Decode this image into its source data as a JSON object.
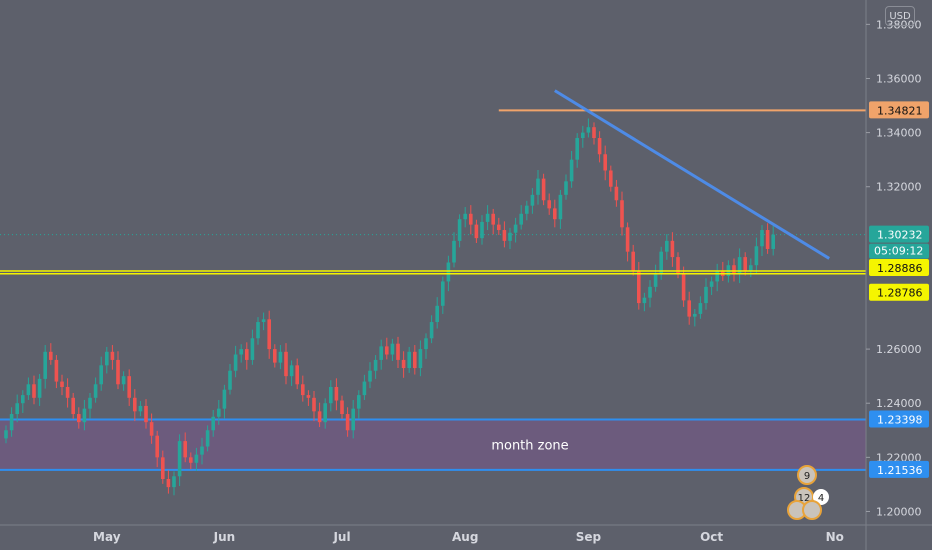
{
  "currency": "USD",
  "annotations": {
    "zone_label": "month zone",
    "event_badges": [
      "9",
      "12",
      "4"
    ]
  },
  "colors": {
    "background": "#5d606b",
    "up_candle": "#26a69a",
    "down_candle": "#ef5350",
    "resistance": "#f0a36a",
    "trendline": "#4e8be6",
    "support_yellow": "#f5f500",
    "zone_line": "#2e8ff0",
    "zone_fill": "#6e5a80",
    "last_price": "#26a69a"
  },
  "chart_data": {
    "type": "candlestick",
    "ylim": [
      1.195,
      1.389
    ],
    "y_ticks": [
      "1.38000",
      "1.36000",
      "1.34000",
      "1.32000",
      "1.26000",
      "1.24000",
      "1.22000",
      "1.20000"
    ],
    "x_ticks": [
      {
        "label": "May",
        "i": 18
      },
      {
        "label": "Jun",
        "i": 39
      },
      {
        "label": "Jul",
        "i": 60
      },
      {
        "label": "Aug",
        "i": 82
      },
      {
        "label": "Sep",
        "i": 104
      },
      {
        "label": "Oct",
        "i": 126
      },
      {
        "label": "No",
        "i": 148
      }
    ],
    "price_labels": [
      {
        "value": 1.34821,
        "text": "1.34821",
        "color": "#f0a36a"
      },
      {
        "value": 1.30232,
        "text": "1.30232",
        "color": "#26a69a"
      },
      {
        "value": 1.28886,
        "text": "1.28886",
        "color": "#f5f500"
      },
      {
        "value": 1.28786,
        "text": "1.28786",
        "color": "#f5f500"
      },
      {
        "value": 1.23398,
        "text": "1.23398",
        "color": "#2e8ff0"
      },
      {
        "value": 1.21536,
        "text": "1.21536",
        "color": "#2e8ff0"
      }
    ],
    "countdown": "05:09:12",
    "levels": {
      "resistance": {
        "value": 1.34821,
        "i_start": 88
      },
      "support_upper": 1.28886,
      "support_lower": 1.28786,
      "zone_top": 1.23398,
      "zone_bottom": 1.21536,
      "last_price": 1.30232
    },
    "trendline": {
      "i1": 98,
      "p1": 1.3555,
      "i2": 147,
      "p2": 1.2935
    },
    "closes": [
      1.23,
      1.236,
      1.24,
      1.243,
      1.247,
      1.242,
      1.249,
      1.259,
      1.256,
      1.248,
      1.246,
      1.242,
      1.236,
      1.233,
      1.238,
      1.242,
      1.247,
      1.254,
      1.259,
      1.256,
      1.247,
      1.25,
      1.242,
      1.237,
      1.239,
      1.233,
      1.228,
      1.22,
      1.212,
      1.209,
      1.213,
      1.226,
      1.22,
      1.218,
      1.221,
      1.224,
      1.23,
      1.235,
      1.238,
      1.245,
      1.252,
      1.258,
      1.26,
      1.256,
      1.264,
      1.27,
      1.271,
      1.26,
      1.255,
      1.259,
      1.25,
      1.254,
      1.247,
      1.243,
      1.242,
      1.237,
      1.233,
      1.24,
      1.246,
      1.241,
      1.236,
      1.23,
      1.238,
      1.243,
      1.248,
      1.252,
      1.256,
      1.261,
      1.258,
      1.262,
      1.256,
      1.253,
      1.259,
      1.253,
      1.26,
      1.264,
      1.27,
      1.276,
      1.285,
      1.292,
      1.3,
      1.308,
      1.31,
      1.306,
      1.301,
      1.307,
      1.31,
      1.306,
      1.304,
      1.3,
      1.303,
      1.306,
      1.31,
      1.313,
      1.317,
      1.323,
      1.315,
      1.312,
      1.308,
      1.317,
      1.322,
      1.33,
      1.338,
      1.34,
      1.342,
      1.338,
      1.332,
      1.326,
      1.32,
      1.315,
      1.305,
      1.296,
      1.289,
      1.277,
      1.279,
      1.283,
      1.288,
      1.296,
      1.3,
      1.294,
      1.288,
      1.278,
      1.272,
      1.273,
      1.277,
      1.283,
      1.285,
      1.289,
      1.287,
      1.291,
      1.288,
      1.294,
      1.289,
      1.291,
      1.298,
      1.304,
      1.297,
      1.3023
    ]
  }
}
